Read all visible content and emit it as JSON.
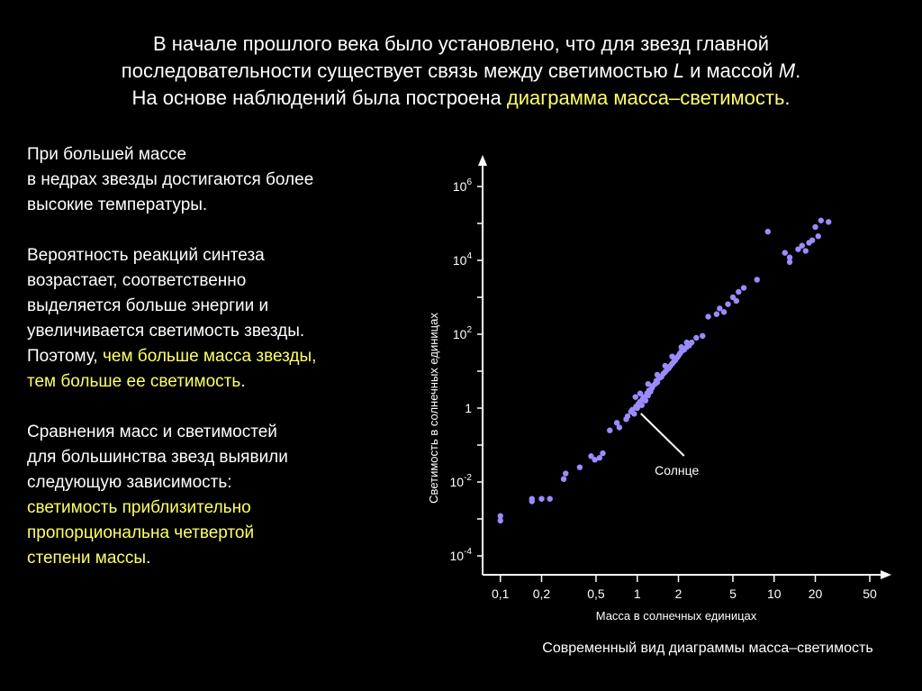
{
  "heading": {
    "line1": "В начале прошлого века было установлено, что для звезд главной",
    "line2_pre": "последовательности существует связь между светимостью ",
    "line2_L": "L",
    "line2_mid": " и массой ",
    "line2_M": "M",
    "line2_end": ".",
    "line3_pre": "На основе наблюдений была построена ",
    "line3_highlight": "диаграмма масса–светимость",
    "line3_end": "."
  },
  "left_text": {
    "p1": [
      "При большей массе",
      "в недрах звезды достигаются более",
      "высокие температуры."
    ],
    "p2_plain": [
      "Вероятность реакций синтеза",
      "возрастает, соответственно",
      "выделяется больше энергии и",
      "увеличивается светимость звезды."
    ],
    "p2_pre": "Поэтому, ",
    "p2_hl1": "чем больше масса звезды,",
    "p2_hl2": "тем больше ее светимость",
    "p2_end": ".",
    "p3_plain": [
      "Сравнения масс и светимостей",
      "для большинства звезд выявили",
      "следующую зависимость:"
    ],
    "p3_hl": [
      "светимость приблизительно",
      "пропорциональна четвертой",
      "степени массы"
    ],
    "p3_end": "."
  },
  "caption": "Современный вид диаграммы масса–светимость",
  "colors": {
    "highlight": "#ffff66",
    "points": "#9a8cff",
    "background": "#000000",
    "axis": "#ffffff"
  },
  "chart_data": {
    "type": "scatter",
    "xlabel": "Масса в солнечных единицах",
    "ylabel": "Светимость в солнечных единицах",
    "x_scale": "log",
    "y_scale": "log",
    "xlim": [
      0.08,
      60
    ],
    "ylim": [
      1e-05,
      10000000
    ],
    "x_ticks": [
      {
        "value": 0.1,
        "label": "0,1"
      },
      {
        "value": 0.2,
        "label": "0,2"
      },
      {
        "value": 0.5,
        "label": "0,5"
      },
      {
        "value": 1,
        "label": "1"
      },
      {
        "value": 2,
        "label": "2"
      },
      {
        "value": 5,
        "label": "5"
      },
      {
        "value": 10,
        "label": "10"
      },
      {
        "value": 20,
        "label": "20"
      },
      {
        "value": 50,
        "label": "50"
      }
    ],
    "y_ticks": [
      {
        "value": 0.0001,
        "base": "10",
        "exp": "-4"
      },
      {
        "value": 0.01,
        "base": "10",
        "exp": "-2"
      },
      {
        "value": 1,
        "base": "1",
        "exp": ""
      },
      {
        "value": 100,
        "base": "10",
        "exp": "2"
      },
      {
        "value": 10000,
        "base": "10",
        "exp": "4"
      },
      {
        "value": 1000000,
        "base": "10",
        "exp": "6"
      }
    ],
    "annotation": {
      "text": "Солнце",
      "x": 1,
      "y": 1
    },
    "points": [
      [
        0.1,
        0.0009
      ],
      [
        0.1,
        0.0012
      ],
      [
        0.17,
        0.003
      ],
      [
        0.17,
        0.0035
      ],
      [
        0.2,
        0.0035
      ],
      [
        0.23,
        0.0035
      ],
      [
        0.29,
        0.012
      ],
      [
        0.3,
        0.017
      ],
      [
        0.38,
        0.025
      ],
      [
        0.46,
        0.05
      ],
      [
        0.49,
        0.04
      ],
      [
        0.53,
        0.045
      ],
      [
        0.56,
        0.06
      ],
      [
        0.63,
        0.25
      ],
      [
        0.71,
        0.4
      ],
      [
        0.74,
        0.3
      ],
      [
        0.83,
        0.5
      ],
      [
        0.85,
        0.6
      ],
      [
        0.9,
        0.8
      ],
      [
        0.92,
        0.9
      ],
      [
        0.95,
        0.7
      ],
      [
        0.98,
        1.1
      ],
      [
        1.0,
        1.0
      ],
      [
        1.02,
        1.3
      ],
      [
        1.05,
        1.5
      ],
      [
        1.08,
        1.2
      ],
      [
        1.1,
        1.8
      ],
      [
        1.12,
        2.0
      ],
      [
        1.15,
        1.6
      ],
      [
        1.18,
        2.5
      ],
      [
        1.2,
        2.2
      ],
      [
        1.22,
        3.0
      ],
      [
        1.25,
        2.8
      ],
      [
        1.28,
        3.5
      ],
      [
        1.3,
        4.0
      ],
      [
        1.35,
        4.5
      ],
      [
        1.38,
        5.5
      ],
      [
        1.4,
        5.0
      ],
      [
        1.45,
        6.5
      ],
      [
        1.5,
        7.0
      ],
      [
        1.55,
        8.5
      ],
      [
        1.6,
        9.5
      ],
      [
        1.65,
        11
      ],
      [
        1.7,
        12
      ],
      [
        1.75,
        14
      ],
      [
        1.8,
        16
      ],
      [
        1.85,
        18
      ],
      [
        1.9,
        20
      ],
      [
        1.95,
        23
      ],
      [
        2.0,
        26
      ],
      [
        2.05,
        30
      ],
      [
        2.1,
        34
      ],
      [
        2.2,
        38
      ],
      [
        2.3,
        45
      ],
      [
        2.4,
        50
      ],
      [
        2.5,
        60
      ],
      [
        2.3,
        60
      ],
      [
        2.1,
        45
      ],
      [
        1.8,
        25
      ],
      [
        1.6,
        14
      ],
      [
        1.4,
        8.0
      ],
      [
        1.2,
        4.5
      ],
      [
        0.97,
        2.0
      ],
      [
        1.05,
        2.5
      ],
      [
        2.7,
        80
      ],
      [
        3.0,
        90
      ],
      [
        3.3,
        300
      ],
      [
        3.8,
        350
      ],
      [
        4.0,
        500
      ],
      [
        4.3,
        400
      ],
      [
        4.6,
        650
      ],
      [
        5.0,
        1000
      ],
      [
        5.3,
        800
      ],
      [
        5.5,
        1400
      ],
      [
        6.0,
        1800
      ],
      [
        7.5,
        3000
      ],
      [
        9.0,
        60000
      ],
      [
        12,
        16000
      ],
      [
        13,
        9000
      ],
      [
        13,
        12000
      ],
      [
        15,
        20000
      ],
      [
        16,
        25000
      ],
      [
        17,
        18000
      ],
      [
        18,
        30000
      ],
      [
        20,
        80000
      ],
      [
        22,
        120000
      ],
      [
        25,
        110000
      ],
      [
        19,
        35000
      ],
      [
        21,
        45000
      ]
    ]
  }
}
